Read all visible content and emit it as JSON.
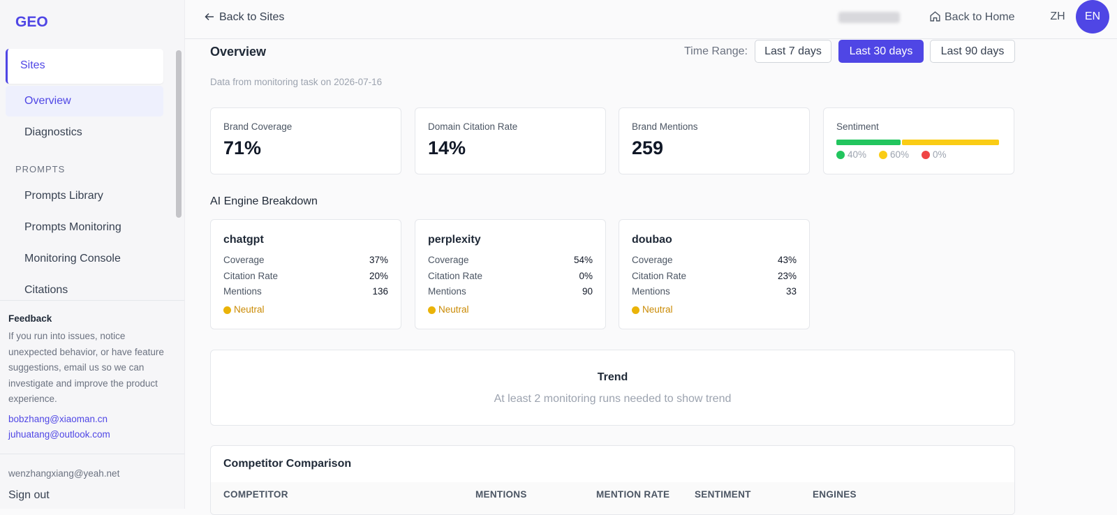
{
  "sidebar": {
    "logo": "GEO",
    "sites": "Sites",
    "site_items": [
      "Overview",
      "Diagnostics"
    ],
    "section": "PROMPTS",
    "prompt_items": [
      "Prompts Library",
      "Prompts Monitoring",
      "Monitoring Console",
      "Citations"
    ],
    "feedback": {
      "title": "Feedback",
      "text": "If you run into issues, notice unexpected behavior, or have feature suggestions, email us so we can investigate and improve the product experience.",
      "emails": [
        "bobzhang@xiaoman.cn",
        "juhuatang@outlook.com"
      ]
    },
    "user": "wenzhangxiang@yeah.net",
    "sign_out": "Sign out"
  },
  "topbar": {
    "back": "Back to Sites",
    "home": "Back to Home",
    "langs": [
      "ZH",
      "EN"
    ],
    "active_lang": 1
  },
  "overview": {
    "title": "Overview",
    "time_range_label": "Time Range:",
    "ranges": [
      "Last 7 days",
      "Last 30 days",
      "Last 90 days"
    ],
    "active_range": 1,
    "note": "Data from monitoring task on 2026-07-16"
  },
  "metrics": [
    {
      "label": "Brand Coverage",
      "value": "71%"
    },
    {
      "label": "Domain Citation Rate",
      "value": "14%"
    },
    {
      "label": "Brand Mentions",
      "value": "259"
    }
  ],
  "sentiment": {
    "label": "Sentiment",
    "segments": [
      {
        "value": 40,
        "label": "40%",
        "color": "#22c55e"
      },
      {
        "value": 60,
        "label": "60%",
        "color": "#facc15"
      },
      {
        "value": 0,
        "label": "0%",
        "color": "#ef4444"
      }
    ]
  },
  "engines": {
    "title": "AI Engine Breakdown",
    "cards": [
      {
        "name": "chatgpt",
        "rows": [
          [
            "Coverage",
            "37%"
          ],
          [
            "Citation Rate",
            "20%"
          ],
          [
            "Mentions",
            "136"
          ]
        ],
        "status": "Neutral"
      },
      {
        "name": "perplexity",
        "rows": [
          [
            "Coverage",
            "54%"
          ],
          [
            "Citation Rate",
            "0%"
          ],
          [
            "Mentions",
            "90"
          ]
        ],
        "status": "Neutral"
      },
      {
        "name": "doubao",
        "rows": [
          [
            "Coverage",
            "43%"
          ],
          [
            "Citation Rate",
            "23%"
          ],
          [
            "Mentions",
            "33"
          ]
        ],
        "status": "Neutral"
      }
    ]
  },
  "trend": {
    "title": "Trend",
    "message": "At least 2 monitoring runs needed to show trend"
  },
  "competitors": {
    "title": "Competitor Comparison",
    "columns": [
      "COMPETITOR",
      "MENTIONS",
      "MENTION RATE",
      "SENTIMENT",
      "ENGINES"
    ]
  }
}
